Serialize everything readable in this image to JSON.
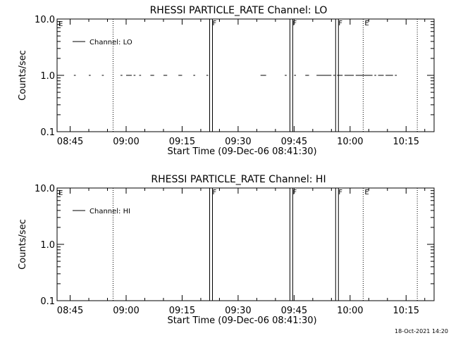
{
  "footer_timestamp": "18-Oct-2021 14:20",
  "chart_data": [
    {
      "type": "line",
      "title": "RHESSI PARTICLE_RATE Channel: LO",
      "xlabel": "Start Time (09-Dec-06 08:41:30)",
      "ylabel": "Counts/sec",
      "y_scale": "log",
      "ylim": [
        0.1,
        10.0
      ],
      "y_ticks": [
        "0.1",
        "1.0",
        "10.0"
      ],
      "xlim": [
        "08:41:30",
        "10:22:30"
      ],
      "x_ticks": [
        "08:45",
        "09:00",
        "09:15",
        "09:30",
        "09:45",
        "10:00",
        "10:15"
      ],
      "legend": {
        "label": "Channel: LO",
        "position": "top-left"
      },
      "series": [
        {
          "name": "Channel: LO",
          "value": 1.0,
          "segments": [
            [
              "08:46:00",
              "08:46:30"
            ],
            [
              "08:50:00",
              "08:50:30"
            ],
            [
              "08:53:30",
              "08:54:00"
            ],
            [
              "08:58:30",
              "08:59:00"
            ],
            [
              "09:00:00",
              "09:01:30"
            ],
            [
              "09:02:00",
              "09:02:30"
            ],
            [
              "09:03:30",
              "09:04:00"
            ],
            [
              "09:06:30",
              "09:07:30"
            ],
            [
              "09:10:00",
              "09:11:00"
            ],
            [
              "09:14:00",
              "09:15:00"
            ],
            [
              "09:18:00",
              "09:18:30"
            ],
            [
              "09:21:30",
              "09:22:00"
            ],
            [
              "09:36:00",
              "09:37:30"
            ],
            [
              "09:42:30",
              "09:43:00"
            ],
            [
              "09:45:00",
              "09:45:30"
            ],
            [
              "09:48:00",
              "09:49:00"
            ],
            [
              "09:51:00",
              "09:55:00"
            ],
            [
              "09:55:30",
              "09:56:00"
            ],
            [
              "09:56:30",
              "09:58:00"
            ],
            [
              "09:58:30",
              "10:01:00"
            ],
            [
              "10:01:30",
              "10:06:00"
            ],
            [
              "10:06:30",
              "10:07:00"
            ],
            [
              "10:07:30",
              "10:09:00"
            ],
            [
              "10:09:30",
              "10:11:30"
            ],
            [
              "10:12:00",
              "10:12:30"
            ]
          ]
        }
      ],
      "event_lines": [
        {
          "time": "08:56:30",
          "style": "dotted",
          "label": ""
        },
        {
          "time": "09:22:45",
          "style": "solid-double",
          "label": "F"
        },
        {
          "time": "09:44:15",
          "style": "solid-double",
          "label": "F"
        },
        {
          "time": "09:56:30",
          "style": "solid-double",
          "label": "F"
        },
        {
          "time": "10:03:30",
          "style": "dotted",
          "label": "E"
        },
        {
          "time": "10:18:00",
          "style": "dotted",
          "label": ""
        }
      ],
      "corner_label": "E"
    },
    {
      "type": "line",
      "title": "RHESSI PARTICLE_RATE Channel: HI",
      "xlabel": "Start Time (09-Dec-06 08:41:30)",
      "ylabel": "Counts/sec",
      "y_scale": "log",
      "ylim": [
        0.1,
        10.0
      ],
      "y_ticks": [
        "0.1",
        "1.0",
        "10.0"
      ],
      "xlim": [
        "08:41:30",
        "10:22:30"
      ],
      "x_ticks": [
        "08:45",
        "09:00",
        "09:15",
        "09:30",
        "09:45",
        "10:00",
        "10:15"
      ],
      "legend": {
        "label": "Channel: HI",
        "position": "top-left"
      },
      "series": [
        {
          "name": "Channel: HI",
          "value": 1.0,
          "segments": []
        }
      ],
      "event_lines": [
        {
          "time": "08:56:30",
          "style": "dotted",
          "label": ""
        },
        {
          "time": "09:22:45",
          "style": "solid-double",
          "label": "F"
        },
        {
          "time": "09:44:15",
          "style": "solid-double",
          "label": "F"
        },
        {
          "time": "09:56:30",
          "style": "solid-double",
          "label": "F"
        },
        {
          "time": "10:03:30",
          "style": "dotted",
          "label": "E"
        },
        {
          "time": "10:18:00",
          "style": "dotted",
          "label": ""
        }
      ],
      "corner_label": "E"
    }
  ]
}
